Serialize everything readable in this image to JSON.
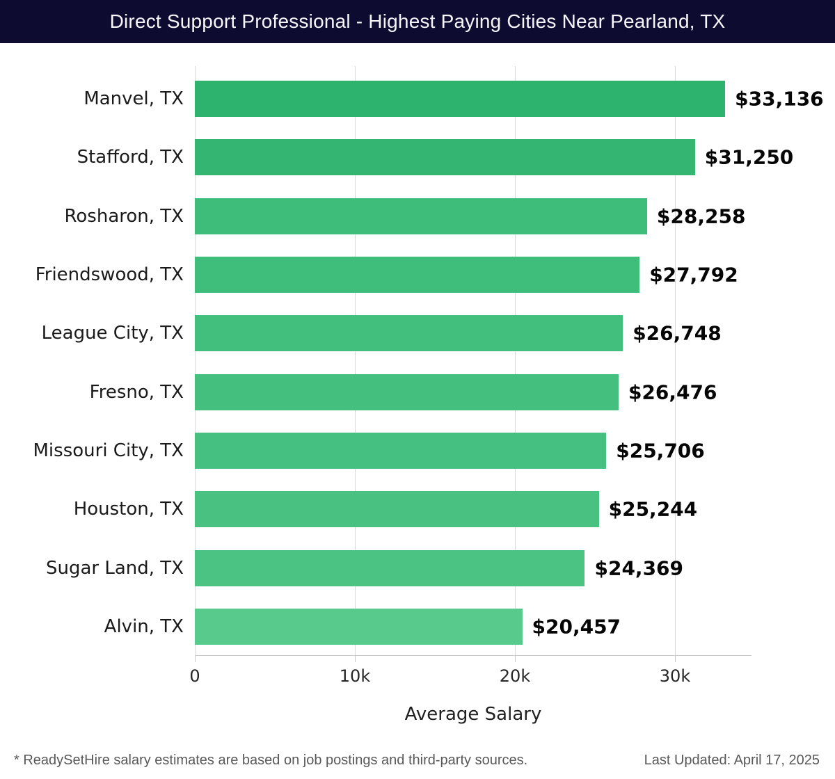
{
  "header": {
    "title": "Direct Support Professional - Highest Paying Cities Near Pearland, TX"
  },
  "chart_data": {
    "type": "bar",
    "orientation": "horizontal",
    "title": "Direct Support Professional - Highest Paying Cities Near Pearland, TX",
    "categories": [
      "Manvel, TX",
      "Stafford, TX",
      "Rosharon, TX",
      "Friendswood, TX",
      "League City, TX",
      "Fresno, TX",
      "Missouri City, TX",
      "Houston, TX",
      "Sugar Land, TX",
      "Alvin, TX"
    ],
    "values": [
      33136,
      31250,
      28258,
      27792,
      26748,
      26476,
      25706,
      25244,
      24369,
      20457
    ],
    "value_labels": [
      "$33,136",
      "$31,250",
      "$28,258",
      "$27,792",
      "$26,748",
      "$26,476",
      "$25,706",
      "$25,244",
      "$24,369",
      "$20,457"
    ],
    "bar_colors": [
      "#2eb36e",
      "#34b672",
      "#3ebc7a",
      "#3fbd7b",
      "#43bf7d",
      "#44bf7e",
      "#46c080",
      "#48c181",
      "#4ac383",
      "#57ca8c"
    ],
    "xlabel": "Average Salary",
    "ylabel": "",
    "xlim": [
      0,
      34800
    ],
    "x_ticks": [
      {
        "value": 0,
        "label": "0"
      },
      {
        "value": 10000,
        "label": "10k"
      },
      {
        "value": 20000,
        "label": "20k"
      },
      {
        "value": 30000,
        "label": "30k"
      }
    ],
    "grid": "vertical",
    "legend": "none"
  },
  "footer": {
    "note": "* ReadySetHire salary estimates are based on job postings and third-party sources.",
    "last_updated": "Last Updated: April 17, 2025"
  },
  "colors": {
    "header_bg": "#0d0b30",
    "header_text": "#f5f5fa",
    "gridline": "#d9d9d9",
    "axis_line": "#c9c9c9",
    "label_text": "#1a1a1a",
    "value_text": "#050505",
    "footer_text": "#595959"
  }
}
